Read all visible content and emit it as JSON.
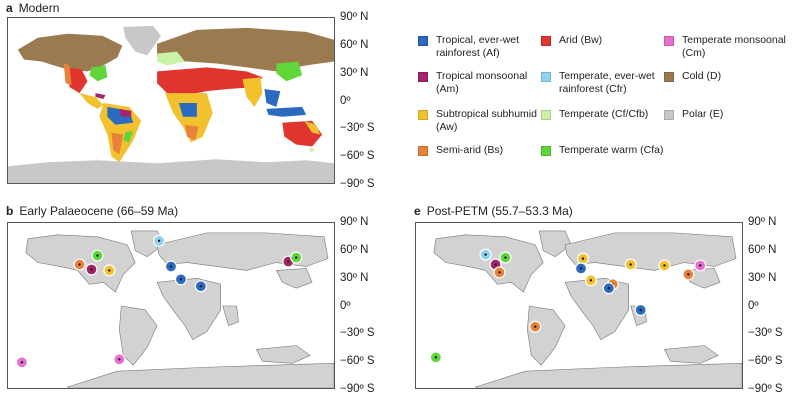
{
  "panels": {
    "a": {
      "letter": "a",
      "title": "Modern"
    },
    "b": {
      "letter": "b",
      "title": "Early Palaeocene (66–59 Ma)"
    },
    "e": {
      "letter": "e",
      "title": "Post-PETM (55.7–53.3 Ma)"
    }
  },
  "latitude_labels": [
    "90º N",
    "60º N",
    "30º N",
    "0º",
    "−30º S",
    "−60º S",
    "−90º S"
  ],
  "legend": [
    {
      "label": "Tropical, ever-wet rainforest (Af)",
      "color": "#2a6bbf"
    },
    {
      "label": "Tropical monsoonal (Am)",
      "color": "#a3246a"
    },
    {
      "label": "Subtropical subhumid (Aw)",
      "color": "#f2c22e"
    },
    {
      "label": "Semi-arid (Bs)",
      "color": "#e8823a"
    },
    {
      "label": "Arid (Bw)",
      "color": "#e0342e"
    },
    {
      "label": "Temperate, ever-wet rainforest (Cfr)",
      "color": "#8fd3ee"
    },
    {
      "label": "Temperate (Cf/Cfb)",
      "color": "#c9f2a6"
    },
    {
      "label": "Temperate warm (Cfa)",
      "color": "#5fd63a"
    },
    {
      "label": "Temperate monsoonal (Cm)",
      "color": "#e86fd0"
    },
    {
      "label": "Cold (D)",
      "color": "#9a7a4e"
    },
    {
      "label": "Polar (E)",
      "color": "#c8c8c8"
    }
  ],
  "sites_b": [
    {
      "climate": "Cfr",
      "color": "#8fd3ee"
    },
    {
      "climate": "Bs",
      "color": "#e8823a"
    },
    {
      "climate": "Am",
      "color": "#a3246a"
    },
    {
      "climate": "Aw",
      "color": "#f2c22e"
    },
    {
      "climate": "Cfa",
      "color": "#5fd63a"
    },
    {
      "climate": "Af",
      "color": "#2a6bbf"
    },
    {
      "climate": "Af",
      "color": "#2a6bbf"
    },
    {
      "climate": "Af",
      "color": "#2a6bbf"
    },
    {
      "climate": "Am",
      "color": "#a3246a"
    },
    {
      "climate": "Cfa",
      "color": "#5fd63a"
    },
    {
      "climate": "Cm",
      "color": "#e86fd0"
    },
    {
      "climate": "Cm",
      "color": "#e86fd0"
    }
  ],
  "sites_e": [
    {
      "climate": "Cfr",
      "color": "#8fd3ee"
    },
    {
      "climate": "Cfa",
      "color": "#5fd63a"
    },
    {
      "climate": "Am",
      "color": "#a3246a"
    },
    {
      "climate": "Bs",
      "color": "#e8823a"
    },
    {
      "climate": "Aw",
      "color": "#f2c22e"
    },
    {
      "climate": "Af",
      "color": "#2a6bbf"
    },
    {
      "climate": "Aw",
      "color": "#f2c22e"
    },
    {
      "climate": "Bs",
      "color": "#e8823a"
    },
    {
      "climate": "Af",
      "color": "#2a6bbf"
    },
    {
      "climate": "Aw",
      "color": "#f2c22e"
    },
    {
      "climate": "Aw",
      "color": "#f2c22e"
    },
    {
      "climate": "Bs",
      "color": "#e8823a"
    },
    {
      "climate": "Cm",
      "color": "#e86fd0"
    },
    {
      "climate": "Af",
      "color": "#2a6bbf"
    },
    {
      "climate": "Bs",
      "color": "#e8823a"
    },
    {
      "climate": "Cfa",
      "color": "#5fd63a"
    }
  ]
}
